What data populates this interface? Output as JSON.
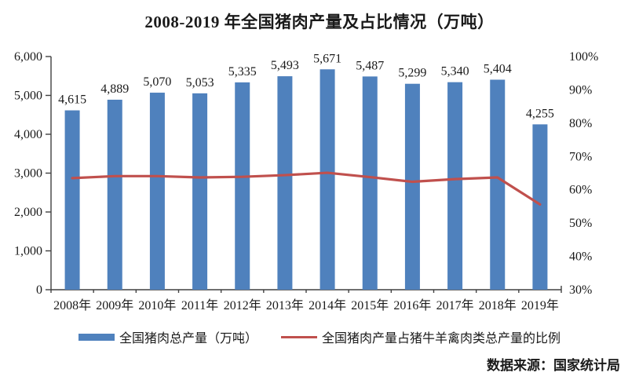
{
  "title": "2008-2019 年全国猪肉产量及占比情况（万吨）",
  "source": "数据来源：国家统计局",
  "colors": {
    "bar": "#4f81bd",
    "line": "#c0504d",
    "axis": "#404040",
    "text": "#1a1a1a"
  },
  "chart_data": {
    "type": "combo-bar-line",
    "title": "2008-2019 年全国猪肉产量及占比情况（万吨）",
    "categories": [
      "2008年",
      "2009年",
      "2010年",
      "2011年",
      "2012年",
      "2013年",
      "2014年",
      "2015年",
      "2016年",
      "2017年",
      "2018年",
      "2019年"
    ],
    "series": [
      {
        "name": "全国猪肉总产量（万吨）",
        "type": "bar",
        "axis": "left",
        "values": [
          4615,
          4889,
          5070,
          5053,
          5335,
          5493,
          5671,
          5487,
          5299,
          5340,
          5404,
          4255
        ],
        "labels": [
          "4,615",
          "4,889",
          "5,070",
          "5,053",
          "5,335",
          "5,493",
          "5,671",
          "5,487",
          "5,299",
          "5,340",
          "5,404",
          "4,255"
        ]
      },
      {
        "name": "全国猪肉产量占猪牛羊禽肉类总产量的比例",
        "type": "line",
        "axis": "right",
        "values": [
          63.5,
          64.1,
          64.1,
          63.7,
          63.9,
          64.4,
          65.1,
          63.8,
          62.4,
          63.2,
          63.7,
          55.6
        ]
      }
    ],
    "left_axis": {
      "min": 0,
      "max": 6000,
      "step": 1000,
      "tick_labels": [
        "0",
        "1,000",
        "2,000",
        "3,000",
        "4,000",
        "5,000",
        "6,000"
      ]
    },
    "right_axis": {
      "min": 30,
      "max": 100,
      "step": 10,
      "tick_labels": [
        "30%",
        "40%",
        "50%",
        "60%",
        "70%",
        "80%",
        "90%",
        "100%"
      ]
    },
    "grid": false,
    "legend_position": "bottom"
  }
}
